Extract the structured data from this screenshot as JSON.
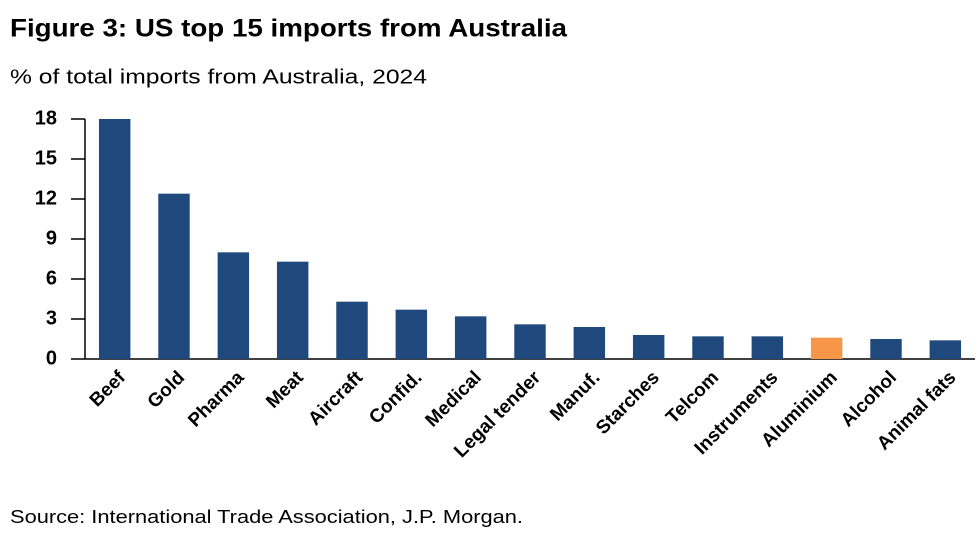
{
  "chart_data": {
    "type": "bar",
    "title": "Figure 3: US top 15 imports from Australia",
    "subtitle": "% of total imports from Australia, 2024",
    "source": "Source: International Trade Association, J.P. Morgan.",
    "categories": [
      "Beef",
      "Gold",
      "Pharma",
      "Meat",
      "Aircraft",
      "Confid.",
      "Medical",
      "Legal tender",
      "Manuf.",
      "Starches",
      "Telcom",
      "Instruments",
      "Aluminium",
      "Alcohol",
      "Animal fats"
    ],
    "values": [
      18.0,
      12.4,
      8.0,
      7.3,
      4.3,
      3.7,
      3.2,
      2.6,
      2.4,
      1.8,
      1.7,
      1.7,
      1.6,
      1.5,
      1.4
    ],
    "colors": [
      "#1f497d",
      "#1f497d",
      "#1f497d",
      "#1f497d",
      "#1f497d",
      "#1f497d",
      "#1f497d",
      "#1f497d",
      "#1f497d",
      "#1f497d",
      "#1f497d",
      "#1f497d",
      "#f79646",
      "#1f497d",
      "#1f497d"
    ],
    "ylim": [
      0,
      18
    ],
    "yticks": [
      0,
      3,
      6,
      9,
      12,
      15,
      18
    ],
    "grid": false
  }
}
